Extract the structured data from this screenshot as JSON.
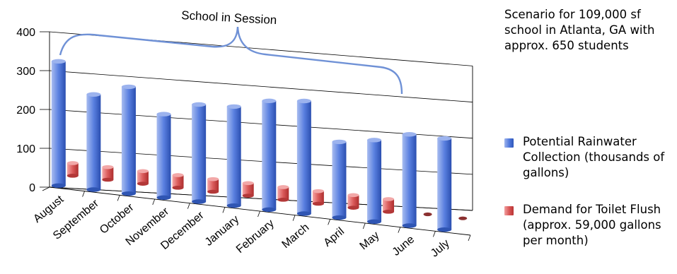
{
  "chart_data": {
    "type": "bar",
    "categories": [
      "August",
      "September",
      "October",
      "November",
      "December",
      "January",
      "February",
      "March",
      "April",
      "May",
      "June",
      "July"
    ],
    "series": [
      {
        "name": "Potential Rainwater Collection (thousands of gallons)",
        "values": [
          320,
          245,
          275,
          215,
          250,
          255,
          280,
          290,
          195,
          210,
          235,
          235
        ]
      },
      {
        "name": "Demand for Toilet Flush (approx. 59,000 gallons per month)",
        "values": [
          59,
          59,
          59,
          59,
          59,
          59,
          59,
          59,
          59,
          59,
          0,
          0
        ]
      }
    ],
    "yticks": [
      0,
      100,
      200,
      300,
      400
    ],
    "ylim": [
      0,
      400
    ],
    "annotation": "School in Session",
    "note": "Scenario for 109,000 sf school in Atlanta, GA with approx. 650 students",
    "legend_position": "right",
    "colors": {
      "rain": "#4f78dd",
      "flush": "#d85454",
      "bracket": "#6f91d6"
    }
  }
}
